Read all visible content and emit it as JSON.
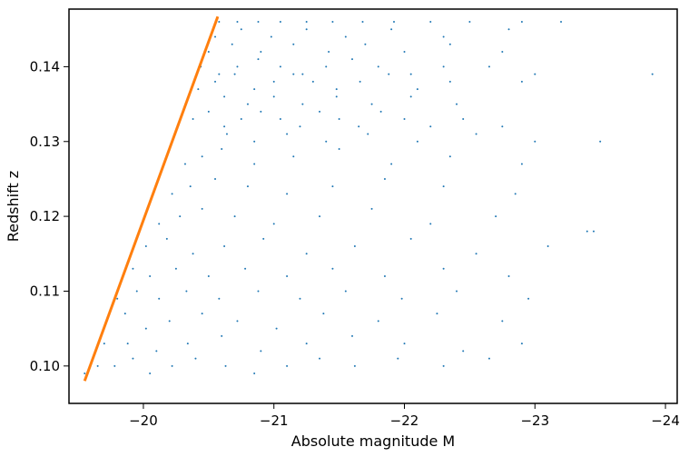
{
  "chart_data": {
    "type": "scatter",
    "xlabel": "Absolute magnitude M",
    "ylabel": "Redshift z",
    "xlim": [
      -19.43,
      -24.09
    ],
    "ylim": [
      0.095,
      0.1477
    ],
    "x_ticks": [
      -20,
      -21,
      -22,
      -23,
      -24
    ],
    "x_tick_labels": [
      "−20",
      "−21",
      "−22",
      "−23",
      "−24"
    ],
    "y_ticks": [
      0.1,
      0.11,
      0.12,
      0.13,
      0.14
    ],
    "y_tick_labels": [
      "0.10",
      "0.11",
      "0.12",
      "0.13",
      "0.14"
    ],
    "grid": false,
    "colors": {
      "points": "#1f77b4",
      "limit_line": "#ff7f0e"
    },
    "series": [
      {
        "kind": "scatter",
        "x": [
          -19.65,
          -19.78,
          -19.92,
          -20.05,
          -20.22,
          -20.4,
          -20.63,
          -20.85,
          -21.1,
          -21.35,
          -21.62,
          -21.95,
          -22.3,
          -22.65,
          -19.55,
          -19.7,
          -19.88,
          -20.1,
          -20.34,
          -20.6,
          -20.9,
          -21.25,
          -21.6,
          -22.0,
          -22.45,
          -22.9,
          -19.72,
          -19.86,
          -20.02,
          -20.2,
          -20.45,
          -20.72,
          -21.02,
          -21.38,
          -21.8,
          -22.25,
          -22.75,
          -19.8,
          -19.95,
          -20.12,
          -20.33,
          -20.58,
          -20.88,
          -21.2,
          -21.55,
          -21.98,
          -22.4,
          -22.95,
          -19.92,
          -20.05,
          -20.25,
          -20.5,
          -20.78,
          -21.1,
          -21.45,
          -21.85,
          -22.3,
          -22.8,
          -20.02,
          -20.18,
          -20.38,
          -20.62,
          -20.92,
          -21.25,
          -21.62,
          -22.05,
          -22.55,
          -23.1,
          -20.12,
          -20.28,
          -20.45,
          -20.7,
          -21.0,
          -21.35,
          -21.75,
          -22.2,
          -22.7,
          -23.4,
          -20.22,
          -20.36,
          -20.55,
          -20.8,
          -21.1,
          -21.45,
          -21.85,
          -22.3,
          -22.85,
          -23.45,
          -20.32,
          -20.45,
          -20.6,
          -20.85,
          -21.15,
          -21.5,
          -21.9,
          -22.35,
          -22.9,
          -23.5,
          -20.38,
          -20.5,
          -20.62,
          -20.75,
          -20.9,
          -21.05,
          -21.2,
          -21.35,
          -21.5,
          -21.65,
          -21.82,
          -22.0,
          -22.2,
          -22.45,
          -22.75,
          -20.42,
          -20.55,
          -20.7,
          -20.85,
          -21.0,
          -21.15,
          -21.3,
          -21.48,
          -21.66,
          -21.88,
          -22.1,
          -22.35,
          -22.9,
          -23.9,
          -20.44,
          -20.58,
          -20.72,
          -20.88,
          -21.05,
          -21.22,
          -21.4,
          -21.6,
          -21.8,
          -22.05,
          -22.3,
          -22.65,
          -23.0,
          -20.5,
          -20.68,
          -20.9,
          -21.15,
          -21.42,
          -21.7,
          -22.0,
          -22.35,
          -22.75,
          -20.55,
          -20.75,
          -20.98,
          -21.25,
          -21.55,
          -21.9,
          -22.3,
          -22.8,
          -20.58,
          -20.72,
          -20.88,
          -21.05,
          -21.25,
          -21.45,
          -21.68,
          -21.92,
          -22.2,
          -22.5,
          -22.9,
          -23.2,
          -20.62,
          -20.8,
          -21.0,
          -21.22,
          -21.48,
          -21.75,
          -22.05,
          -22.4,
          -20.64,
          -20.85,
          -21.1,
          -21.4,
          -21.72,
          -22.1,
          -22.55,
          -23.0
        ],
        "y": [
          0.1,
          0.1,
          0.101,
          0.099,
          0.1,
          0.101,
          0.1,
          0.099,
          0.1,
          0.101,
          0.1,
          0.101,
          0.1,
          0.101,
          0.099,
          0.103,
          0.103,
          0.102,
          0.103,
          0.104,
          0.102,
          0.103,
          0.104,
          0.103,
          0.102,
          0.103,
          0.106,
          0.107,
          0.105,
          0.106,
          0.107,
          0.106,
          0.105,
          0.107,
          0.106,
          0.107,
          0.106,
          0.109,
          0.11,
          0.109,
          0.11,
          0.109,
          0.11,
          0.109,
          0.11,
          0.109,
          0.11,
          0.109,
          0.113,
          0.112,
          0.113,
          0.112,
          0.113,
          0.112,
          0.113,
          0.112,
          0.113,
          0.112,
          0.116,
          0.117,
          0.115,
          0.116,
          0.117,
          0.115,
          0.116,
          0.117,
          0.115,
          0.116,
          0.119,
          0.12,
          0.121,
          0.12,
          0.119,
          0.12,
          0.121,
          0.119,
          0.12,
          0.118,
          0.123,
          0.124,
          0.125,
          0.124,
          0.123,
          0.124,
          0.125,
          0.124,
          0.123,
          0.118,
          0.127,
          0.128,
          0.129,
          0.127,
          0.128,
          0.129,
          0.127,
          0.128,
          0.127,
          0.13,
          0.133,
          0.134,
          0.132,
          0.133,
          0.134,
          0.133,
          0.132,
          0.134,
          0.133,
          0.132,
          0.134,
          0.133,
          0.132,
          0.133,
          0.132,
          0.137,
          0.138,
          0.139,
          0.137,
          0.138,
          0.139,
          0.138,
          0.137,
          0.138,
          0.139,
          0.137,
          0.138,
          0.138,
          0.139,
          0.14,
          0.139,
          0.14,
          0.141,
          0.14,
          0.139,
          0.14,
          0.141,
          0.14,
          0.139,
          0.14,
          0.14,
          0.139,
          0.142,
          0.143,
          0.142,
          0.143,
          0.142,
          0.143,
          0.142,
          0.143,
          0.142,
          0.144,
          0.145,
          0.144,
          0.145,
          0.144,
          0.145,
          0.144,
          0.145,
          0.146,
          0.146,
          0.146,
          0.146,
          0.146,
          0.146,
          0.146,
          0.146,
          0.146,
          0.146,
          0.146,
          0.146,
          0.136,
          0.135,
          0.136,
          0.135,
          0.136,
          0.135,
          0.136,
          0.135,
          0.131,
          0.13,
          0.131,
          0.13,
          0.131,
          0.13,
          0.131,
          0.13
        ]
      },
      {
        "kind": "line",
        "x": [
          -19.55,
          -20.57
        ],
        "y": [
          0.098,
          0.1467
        ]
      }
    ]
  }
}
